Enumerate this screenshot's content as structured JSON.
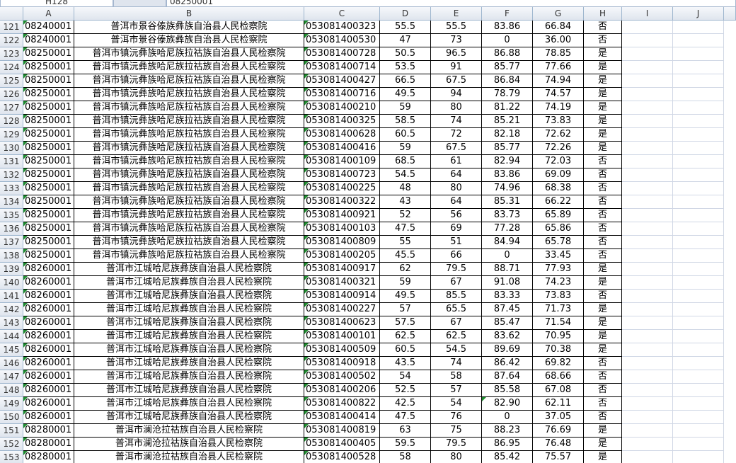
{
  "formula_bar": {
    "name_box": "H128",
    "content": "08250001"
  },
  "columns": [
    "A",
    "B",
    "C",
    "D",
    "E",
    "F",
    "G",
    "H",
    "I",
    "J"
  ],
  "rows": [
    {
      "number": "121",
      "cells": [
        "08240001",
        "普洱市景谷傣族彝族自治县人民检察院",
        "053081400323",
        "55.5",
        "55.5",
        "83.86",
        "66.84",
        "否"
      ]
    },
    {
      "number": "122",
      "cells": [
        "08240001",
        "普洱市景谷傣族彝族自治县人民检察院",
        "053081400530",
        "47",
        "73",
        "0",
        "36.00",
        "否"
      ]
    },
    {
      "number": "123",
      "cells": [
        "08250001",
        "普洱市镇沅彝族哈尼族拉祜族自治县人民检察院",
        "053081400728",
        "50.5",
        "96.5",
        "86.88",
        "78.85",
        "是"
      ]
    },
    {
      "number": "124",
      "cells": [
        "08250001",
        "普洱市镇沅彝族哈尼族拉祜族自治县人民检察院",
        "053081400714",
        "53.5",
        "91",
        "85.77",
        "77.66",
        "是"
      ]
    },
    {
      "number": "125",
      "cells": [
        "08250001",
        "普洱市镇沅彝族哈尼族拉祜族自治县人民检察院",
        "053081400427",
        "66.5",
        "67.5",
        "86.84",
        "74.94",
        "是"
      ]
    },
    {
      "number": "126",
      "cells": [
        "08250001",
        "普洱市镇沅彝族哈尼族拉祜族自治县人民检察院",
        "053081400716",
        "49.5",
        "94",
        "78.79",
        "74.57",
        "是"
      ]
    },
    {
      "number": "127",
      "cells": [
        "08250001",
        "普洱市镇沅彝族哈尼族拉祜族自治县人民检察院",
        "053081400210",
        "59",
        "80",
        "81.22",
        "74.19",
        "是"
      ]
    },
    {
      "number": "128",
      "cells": [
        "08250001",
        "普洱市镇沅彝族哈尼族拉祜族自治县人民检察院",
        "053081400325",
        "58.5",
        "74",
        "85.21",
        "73.83",
        "是"
      ]
    },
    {
      "number": "129",
      "cells": [
        "08250001",
        "普洱市镇沅彝族哈尼族拉祜族自治县人民检察院",
        "053081400628",
        "60.5",
        "72",
        "82.18",
        "72.62",
        "是"
      ]
    },
    {
      "number": "130",
      "cells": [
        "08250001",
        "普洱市镇沅彝族哈尼族拉祜族自治县人民检察院",
        "053081400416",
        "59",
        "67.5",
        "85.77",
        "72.26",
        "是"
      ]
    },
    {
      "number": "131",
      "cells": [
        "08250001",
        "普洱市镇沅彝族哈尼族拉祜族自治县人民检察院",
        "053081400109",
        "68.5",
        "61",
        "82.94",
        "72.03",
        "否"
      ]
    },
    {
      "number": "132",
      "cells": [
        "08250001",
        "普洱市镇沅彝族哈尼族拉祜族自治县人民检察院",
        "053081400723",
        "54.5",
        "64",
        "83.86",
        "69.09",
        "否"
      ]
    },
    {
      "number": "133",
      "cells": [
        "08250001",
        "普洱市镇沅彝族哈尼族拉祜族自治县人民检察院",
        "053081400225",
        "48",
        "80",
        "74.96",
        "68.38",
        "否"
      ]
    },
    {
      "number": "134",
      "cells": [
        "08250001",
        "普洱市镇沅彝族哈尼族拉祜族自治县人民检察院",
        "053081400322",
        "43",
        "64",
        "85.31",
        "66.22",
        "否"
      ]
    },
    {
      "number": "135",
      "cells": [
        "08250001",
        "普洱市镇沅彝族哈尼族拉祜族自治县人民检察院",
        "053081400921",
        "52",
        "56",
        "83.73",
        "65.89",
        "否"
      ]
    },
    {
      "number": "136",
      "cells": [
        "08250001",
        "普洱市镇沅彝族哈尼族拉祜族自治县人民检察院",
        "053081400103",
        "47.5",
        "69",
        "77.28",
        "65.86",
        "否"
      ]
    },
    {
      "number": "137",
      "cells": [
        "08250001",
        "普洱市镇沅彝族哈尼族拉祜族自治县人民检察院",
        "053081400809",
        "55",
        "51",
        "84.94",
        "65.78",
        "否"
      ]
    },
    {
      "number": "138",
      "cells": [
        "08250001",
        "普洱市镇沅彝族哈尼族拉祜族自治县人民检察院",
        "053081400205",
        "45.5",
        "66",
        "0",
        "33.45",
        "否"
      ]
    },
    {
      "number": "139",
      "cells": [
        "08260001",
        "普洱市江城哈尼族彝族自治县人民检察院",
        "053081400917",
        "62",
        "79.5",
        "88.71",
        "77.93",
        "是"
      ]
    },
    {
      "number": "140",
      "cells": [
        "08260001",
        "普洱市江城哈尼族彝族自治县人民检察院",
        "053081400321",
        "59",
        "67",
        "91.08",
        "74.23",
        "是"
      ]
    },
    {
      "number": "141",
      "cells": [
        "08260001",
        "普洱市江城哈尼族彝族自治县人民检察院",
        "053081400914",
        "49.5",
        "85.5",
        "83.33",
        "73.83",
        "否"
      ]
    },
    {
      "number": "142",
      "cells": [
        "08260001",
        "普洱市江城哈尼族彝族自治县人民检察院",
        "053081400227",
        "57",
        "65.5",
        "87.45",
        "71.73",
        "是"
      ]
    },
    {
      "number": "143",
      "cells": [
        "08260001",
        "普洱市江城哈尼族彝族自治县人民检察院",
        "053081400623",
        "57.5",
        "67",
        "85.47",
        "71.54",
        "是"
      ]
    },
    {
      "number": "144",
      "cells": [
        "08260001",
        "普洱市江城哈尼族彝族自治县人民检察院",
        "053081400101",
        "62.5",
        "62.5",
        "83.62",
        "70.95",
        "是"
      ]
    },
    {
      "number": "145",
      "cells": [
        "08260001",
        "普洱市江城哈尼族彝族自治县人民检察院",
        "053081400509",
        "60.5",
        "54.5",
        "89.69",
        "70.38",
        "是"
      ]
    },
    {
      "number": "146",
      "cells": [
        "08260001",
        "普洱市江城哈尼族彝族自治县人民检察院",
        "053081400918",
        "43.5",
        "74",
        "86.42",
        "69.82",
        "否"
      ]
    },
    {
      "number": "147",
      "cells": [
        "08260001",
        "普洱市江城哈尼族彝族自治县人民检察院",
        "053081400502",
        "54",
        "58",
        "87.64",
        "68.66",
        "否"
      ]
    },
    {
      "number": "148",
      "cells": [
        "08260001",
        "普洱市江城哈尼族彝族自治县人民检察院",
        "053081400206",
        "52.5",
        "57",
        "85.58",
        "67.08",
        "否"
      ]
    },
    {
      "number": "149",
      "cells": [
        "08260001",
        "普洱市江城哈尼族彝族自治县人民检察院",
        "053081400822",
        "42.5",
        "54",
        "82.90",
        "62.11",
        "否"
      ]
    },
    {
      "number": "150",
      "cells": [
        "08260001",
        "普洱市江城哈尼族彝族自治县人民检察院",
        "053081400414",
        "47.5",
        "76",
        "0",
        "37.05",
        "否"
      ]
    },
    {
      "number": "151",
      "cells": [
        "08280001",
        "普洱市澜沧拉祜族自治县人民检察院",
        "053081400819",
        "63",
        "75",
        "88.23",
        "76.69",
        "是"
      ]
    },
    {
      "number": "152",
      "cells": [
        "08280001",
        "普洱市澜沧拉祜族自治县人民检察院",
        "053081400405",
        "59.5",
        "79.5",
        "86.95",
        "76.48",
        "是"
      ]
    },
    {
      "number": "153",
      "cells": [
        "08280001",
        "普洱市澜沧拉祜族自治县人民检察院",
        "053081400528",
        "58",
        "80",
        "85.42",
        "75.57",
        "是"
      ]
    }
  ]
}
